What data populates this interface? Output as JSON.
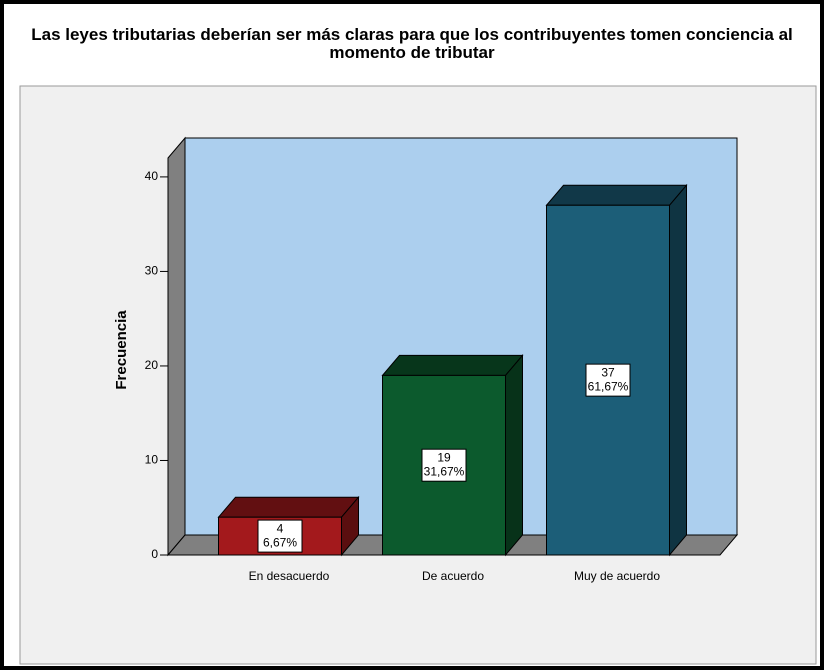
{
  "chart_data": {
    "type": "bar3d",
    "title": "Las leyes tributarias deberían ser más claras para que los contribuyentes tomen conciencia al momento de tributar",
    "y_label": "Frecuencia",
    "categories": [
      "En desacuerdo",
      "De acuerdo",
      "Muy de acuerdo"
    ],
    "values": [
      4,
      19,
      37
    ],
    "percents": [
      6.67,
      31.67,
      61.67
    ],
    "percent_labels": [
      "6,67%",
      "31,67%",
      "61,67%"
    ],
    "colors": [
      "#a3191c",
      "#0c5a2d",
      "#1c5e78"
    ],
    "ylim": [
      0,
      42
    ],
    "yticks": [
      0,
      10,
      20,
      30,
      40
    ]
  }
}
